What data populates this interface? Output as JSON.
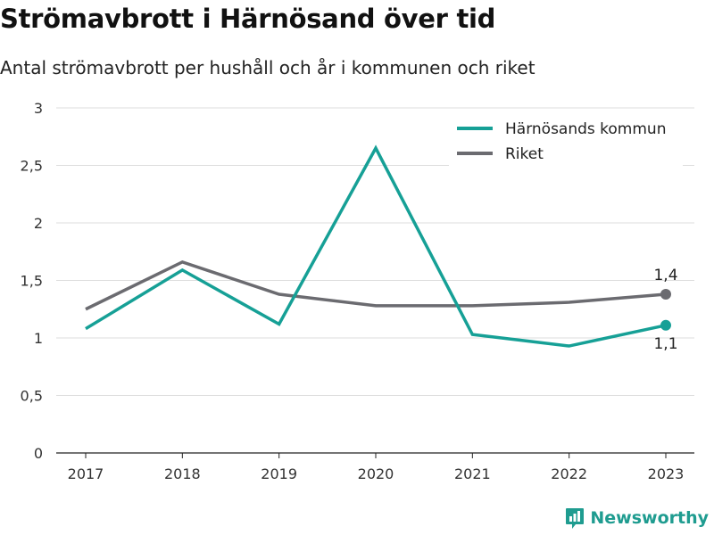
{
  "title": "Strömavbrott i Härnösand över tid",
  "subtitle": "Antal strömavbrott per hushåll och år i kommunen och riket",
  "brand": {
    "name": "Newsworthy",
    "icon": "newsworthy-logo-icon"
  },
  "chart_data": {
    "type": "line",
    "x": [
      "2017",
      "2018",
      "2019",
      "2020",
      "2021",
      "2022",
      "2023"
    ],
    "ylim": [
      0,
      3
    ],
    "yticks": [
      0,
      0.5,
      1,
      1.5,
      2,
      2.5,
      3
    ],
    "ytick_labels": [
      "0",
      "0,5",
      "1",
      "1,5",
      "2",
      "2,5",
      "3"
    ],
    "grid": "horizontal",
    "legend_position": "top-right",
    "series": [
      {
        "name": "Härnösands kommun",
        "color": "#16a096",
        "values": [
          1.08,
          1.59,
          1.12,
          2.65,
          1.03,
          0.93,
          1.11
        ],
        "end_label": "1,1",
        "end_label_position": "below"
      },
      {
        "name": "Riket",
        "color": "#6b6b70",
        "values": [
          1.25,
          1.66,
          1.38,
          1.28,
          1.28,
          1.31,
          1.38
        ],
        "end_label": "1,4",
        "end_label_position": "above"
      }
    ]
  }
}
